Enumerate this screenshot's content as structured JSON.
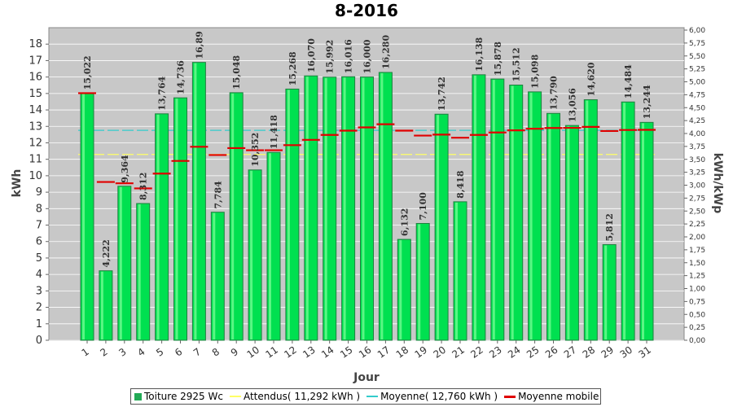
{
  "chart_data": {
    "type": "bar",
    "title": "8-2016",
    "xlabel": "Jour",
    "ylabel": "kWh",
    "ylabel_right": "kWh/kWp",
    "ylim": [
      0,
      19
    ],
    "yticks": [
      0,
      1,
      2,
      3,
      4,
      5,
      6,
      7,
      8,
      9,
      10,
      11,
      12,
      13,
      14,
      15,
      16,
      17,
      18
    ],
    "ylim_right": [
      0,
      6.0
    ],
    "yticks_right": [
      "0,00",
      "0,25",
      "0,50",
      "0,75",
      "1,00",
      "1,25",
      "1,50",
      "1,75",
      "2,00",
      "2,25",
      "2,50",
      "2,75",
      "3,00",
      "3,25",
      "3,50",
      "3,75",
      "4,00",
      "4,25",
      "4,50",
      "4,75",
      "5,00",
      "5,25",
      "5,50",
      "5,75",
      "6,00"
    ],
    "categories": [
      "1",
      "2",
      "3",
      "4",
      "5",
      "6",
      "7",
      "8",
      "9",
      "10",
      "11",
      "12",
      "13",
      "14",
      "15",
      "16",
      "17",
      "18",
      "19",
      "20",
      "21",
      "22",
      "23",
      "24",
      "25",
      "26",
      "27",
      "28",
      "29",
      "30",
      "31"
    ],
    "series": [
      {
        "name": "Toiture 2925 Wc",
        "kind": "bar",
        "color": "#00e050",
        "values": [
          15.022,
          4.222,
          9.364,
          8.312,
          13.764,
          14.736,
          16.89,
          7.784,
          15.048,
          10.352,
          11.418,
          15.268,
          16.07,
          15.992,
          16.016,
          16.0,
          16.28,
          6.132,
          7.1,
          13.742,
          8.418,
          16.138,
          15.878,
          15.512,
          15.098,
          13.79,
          13.056,
          14.62,
          5.812,
          14.484,
          13.244
        ],
        "labels": [
          "15,022",
          "4,222",
          "9,364",
          "8,312",
          "13,764",
          "14,736",
          "16,89",
          "7,784",
          "15,048",
          "10,352",
          "11,418",
          "15,268",
          "16,070",
          "15,992",
          "16,016",
          "16,000",
          "16,280",
          "6,132",
          "7,100",
          "13,742",
          "8,418",
          "16,138",
          "15,878",
          "15,512",
          "15,098",
          "13,790",
          "13,056",
          "14,620",
          "5,812",
          "14,484",
          "13,244"
        ]
      },
      {
        "name": "Attendus( 11,292 kWh )",
        "kind": "hline",
        "color": "#ffff66",
        "value": 11.292
      },
      {
        "name": "Moyenne( 12,760 kWh )",
        "kind": "hline",
        "color": "#33cccc",
        "value": 12.76
      },
      {
        "name": "Moyenne mobile",
        "kind": "step",
        "color": "#e00000",
        "values": [
          15.02,
          9.62,
          9.54,
          9.23,
          10.13,
          10.9,
          11.76,
          11.26,
          11.68,
          11.55,
          11.55,
          11.86,
          12.18,
          12.48,
          12.74,
          12.94,
          13.13,
          12.74,
          12.44,
          12.5,
          12.31,
          12.48,
          12.63,
          12.76,
          12.86,
          12.9,
          12.91,
          12.97,
          12.72,
          12.78,
          12.79
        ]
      }
    ],
    "grid": true,
    "legend": "bottom"
  }
}
